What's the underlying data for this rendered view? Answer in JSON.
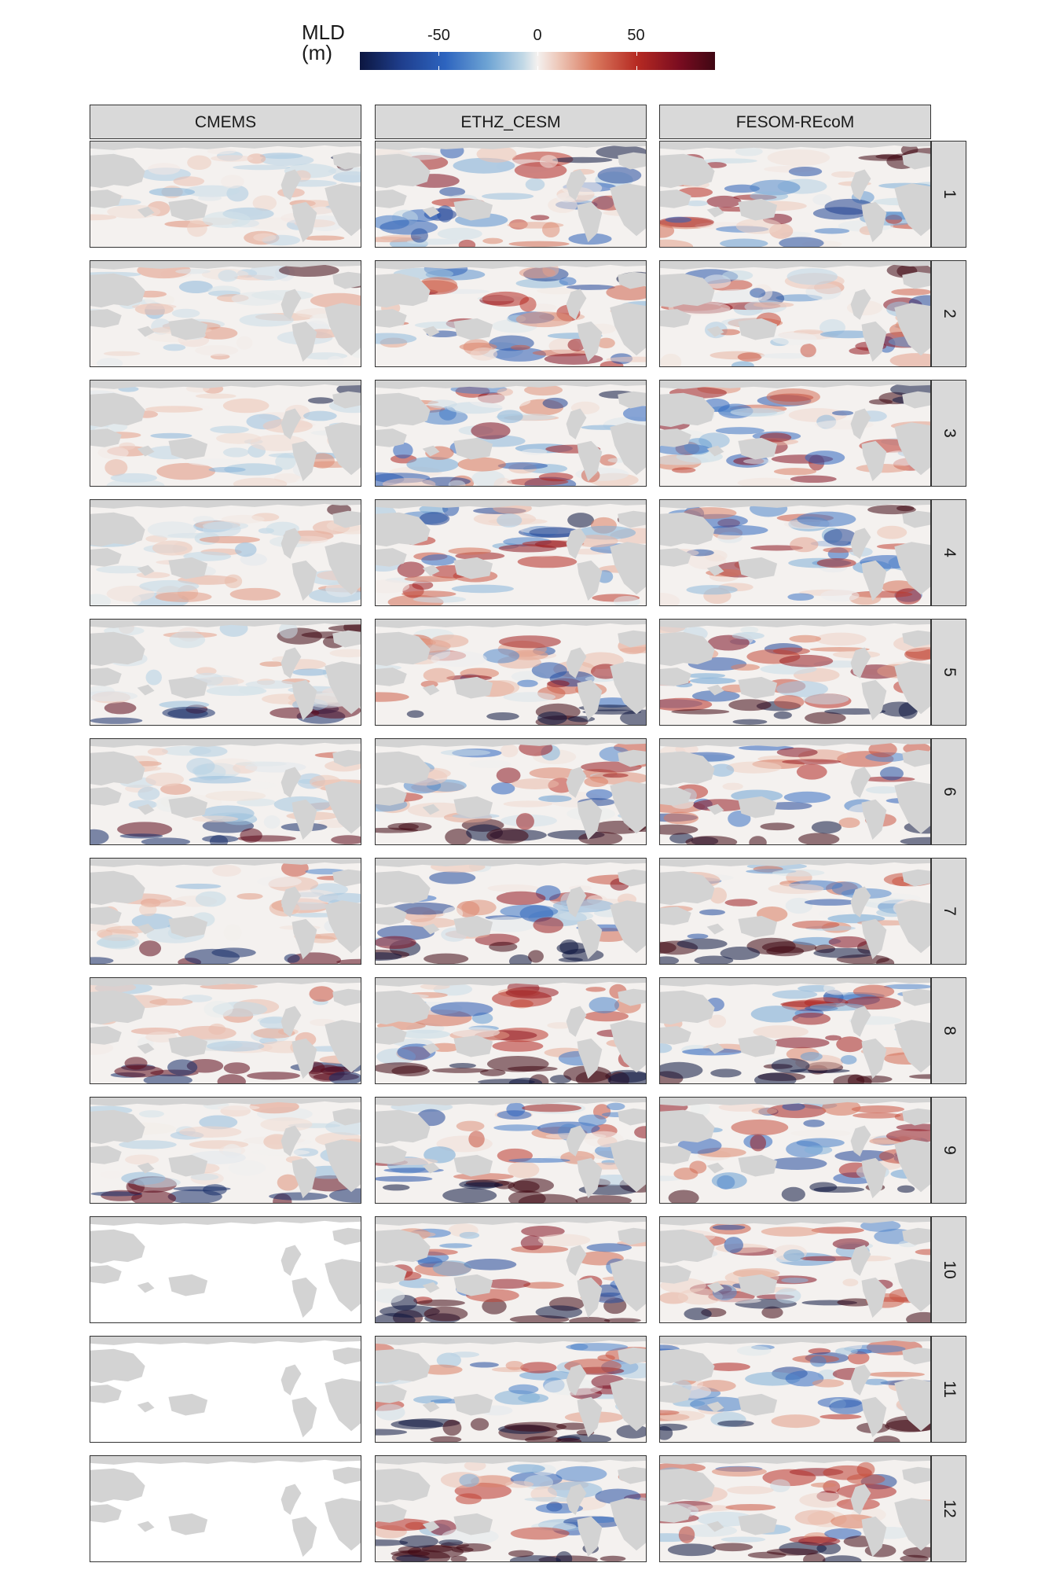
{
  "legend": {
    "title_line1": "MLD",
    "title_line2": "(m)",
    "scale": {
      "min": -90,
      "max": 90
    },
    "ticks": [
      "-50",
      "0",
      "50"
    ],
    "tick_values": [
      -50,
      0,
      50
    ],
    "colors": {
      "negative": "#1f3f8e",
      "zero": "#f4f1ef",
      "positive": "#b62a22",
      "land": "#d3d3d3"
    }
  },
  "columns": [
    "CMEMS",
    "ETHZ_CESM",
    "FESOM-REcoM"
  ],
  "rows": [
    "1",
    "2",
    "3",
    "4",
    "5",
    "6",
    "7",
    "8",
    "9",
    "10",
    "11",
    "12"
  ],
  "panel_notes": {
    "CMEMS_missing_months": [
      "10",
      "11",
      "12"
    ]
  }
}
